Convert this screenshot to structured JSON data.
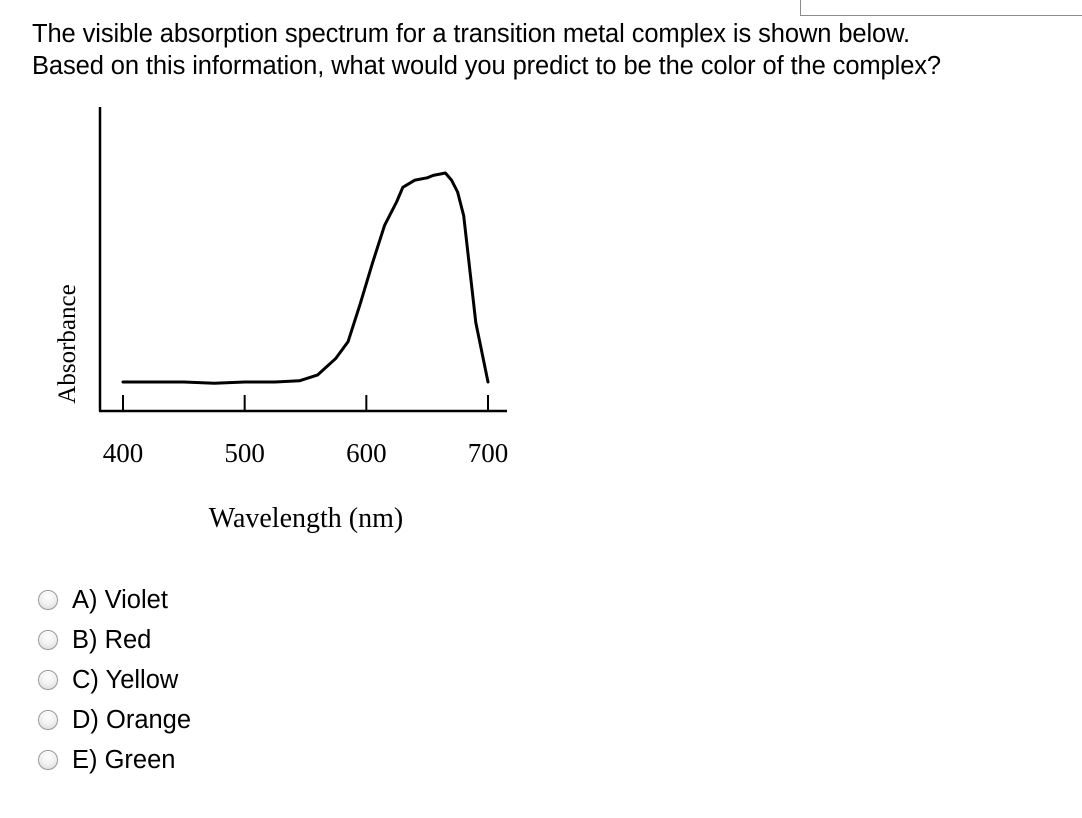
{
  "question": {
    "line1": "The visible absorption spectrum for a transition metal complex is shown below.",
    "line2": "Based on this information, what would you predict to be the color of the complex?"
  },
  "chart_data": {
    "type": "line",
    "xlabel": "Wavelength (nm)",
    "ylabel": "Absorbance",
    "xlim": [
      400,
      700
    ],
    "xticks": [
      400,
      500,
      600,
      700
    ],
    "y_tick_labels": false,
    "grid": false,
    "series": [
      {
        "x": [
          400,
          425,
          450,
          475,
          500,
          525,
          545,
          560,
          575,
          585,
          595,
          605,
          615,
          625,
          630,
          640,
          650,
          655,
          665,
          670,
          675,
          680,
          690,
          700
        ],
        "y": [
          0.0,
          0.0,
          0.0,
          -0.005,
          0.0,
          0.0,
          0.005,
          0.03,
          0.1,
          0.17,
          0.33,
          0.5,
          0.66,
          0.76,
          0.82,
          0.85,
          0.86,
          0.87,
          0.88,
          0.85,
          0.8,
          0.7,
          0.25,
          0.0
        ]
      }
    ]
  },
  "options": [
    {
      "label": "A) Violet"
    },
    {
      "label": "B) Red"
    },
    {
      "label": "C) Yellow"
    },
    {
      "label": "D) Orange"
    },
    {
      "label": "E) Green"
    }
  ]
}
